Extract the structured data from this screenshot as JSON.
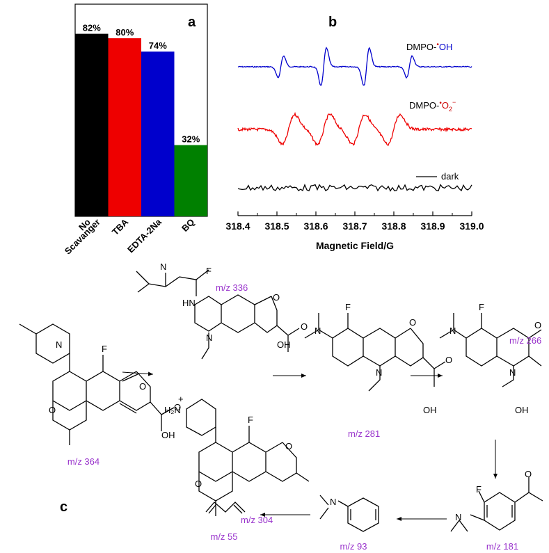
{
  "chart_data": [
    {
      "panel": "a",
      "type": "bar",
      "categories": [
        "No Scavanger",
        "TBA",
        "EDTA-2Na",
        "BQ"
      ],
      "category_lines": [
        [
          "No",
          "Scavanger"
        ],
        [
          "TBA"
        ],
        [
          "EDTA-2Na"
        ],
        [
          "BQ"
        ]
      ],
      "values": [
        82,
        80,
        74,
        32
      ],
      "value_labels": [
        "82%",
        "80%",
        "74%",
        "32%"
      ],
      "colors": [
        "#000000",
        "#ee0000",
        "#0000cc",
        "#008000"
      ],
      "ylim": [
        0,
        100
      ],
      "label": "a"
    },
    {
      "panel": "b",
      "type": "line",
      "label": "b",
      "xlabel": "Magnetic Field/G",
      "xlim": [
        318.4,
        319.0
      ],
      "xticks": [
        "318.4",
        "318.5",
        "318.6",
        "318.7",
        "318.8",
        "318.9",
        "319.0"
      ],
      "series": [
        {
          "name": "DMPO-•OH",
          "color": "#0000cc",
          "peaks": [
            318.51,
            318.62,
            318.73,
            318.84
          ],
          "heights": [
            1,
            2,
            2,
            1
          ]
        },
        {
          "name": "DMPO-•O2−",
          "color": "#ee0000",
          "peaks": [
            318.53,
            318.62,
            318.71,
            318.8
          ]
        },
        {
          "name": "dark",
          "color": "#000000"
        }
      ],
      "legend": {
        "oh_prefix": "DMPO-",
        "oh_dot": "•",
        "oh_radical": "OH",
        "o2_prefix": "DMPO-",
        "o2_dot": "•",
        "o2_radical": "O",
        "o2_sub": "2",
        "o2_sup": "−",
        "dark": "dark"
      }
    }
  ],
  "scheme": {
    "panel_label": "c",
    "mz_labels": {
      "m364": "m/z 364",
      "m336": "m/z 336",
      "m304": "m/z 304",
      "m281": "m/z 281",
      "m266": "m/z 266",
      "m181": "m/z 181",
      "m93": "m/z 93",
      "m55": "m/z 55"
    },
    "atoms": {
      "N": "N",
      "F": "F",
      "O": "O",
      "OH": "OH",
      "HN": "HN",
      "H2N": "H₂N",
      "plus": "+"
    }
  }
}
